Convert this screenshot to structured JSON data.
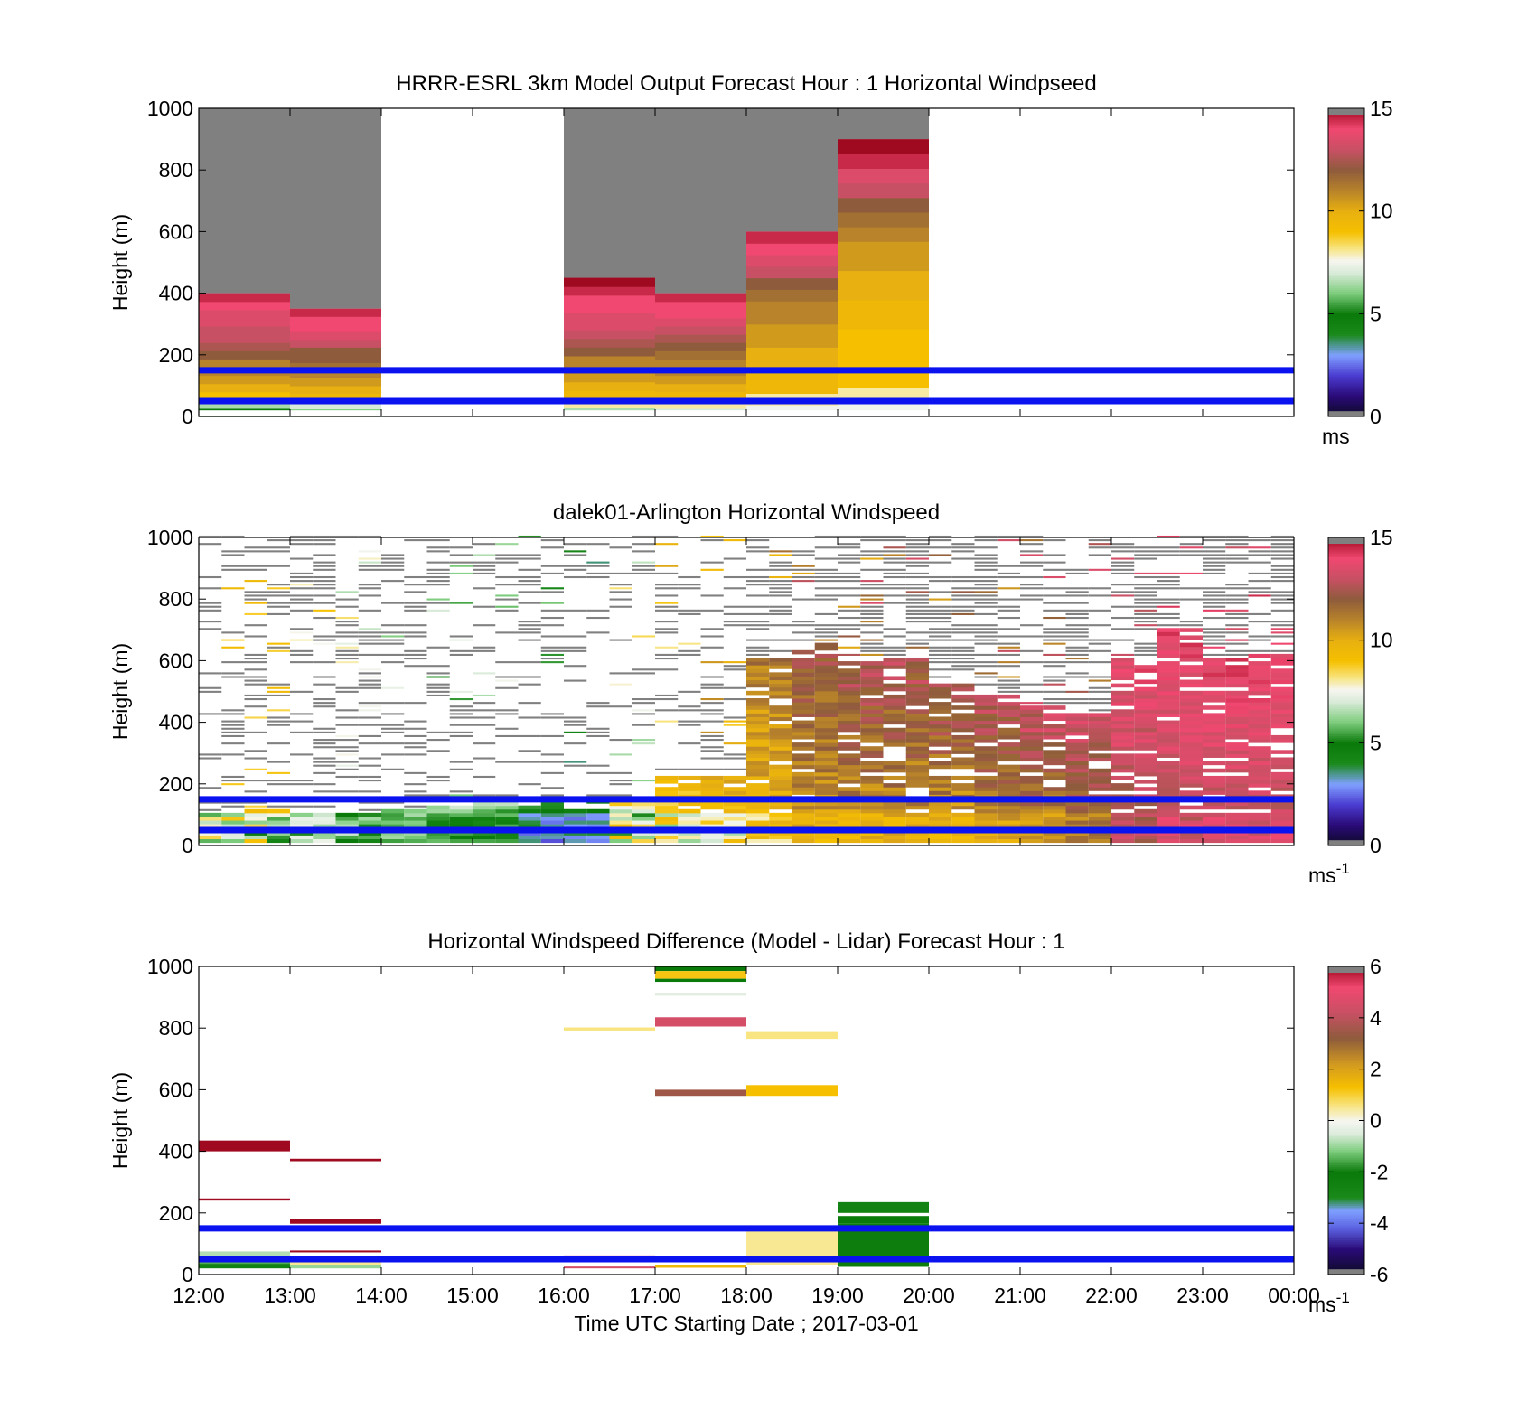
{
  "figure": {
    "xticks": [
      "12:00",
      "13:00",
      "14:00",
      "15:00",
      "16:00",
      "17:00",
      "18:00",
      "19:00",
      "20:00",
      "21:00",
      "22:00",
      "23:00",
      "00:00"
    ],
    "xlabel": "Time UTC  Starting Date ; 2017-03-01",
    "overlay_color": "#0a12f0",
    "missing_color": "#808080"
  },
  "chart_data": [
    {
      "type": "heatmap",
      "title": "HRRR-ESRL 3km Model Output   Forecast Hour : 1 Horizontal Windpseed",
      "ylabel": "Height (m)",
      "ylim": [
        0,
        1000
      ],
      "yticks": [
        "0",
        "200",
        "400",
        "600",
        "800",
        "1000"
      ],
      "x_range_hours": [
        12,
        24
      ],
      "colorbar": {
        "min": 0,
        "max": 15,
        "ticks": [
          "0",
          "5",
          "10",
          "15"
        ],
        "unit": "ms",
        "unit_sup": ""
      },
      "overlay_lines_m": [
        50,
        150
      ],
      "columns": [
        {
          "hour": 12,
          "top": 400,
          "v": [
            5,
            6.5,
            9,
            10,
            10.5,
            11,
            11,
            12,
            12.5,
            13,
            13,
            13.5,
            13.5,
            14,
            14.5
          ]
        },
        {
          "hour": 13,
          "top": 350,
          "v": [
            6,
            7,
            9.5,
            10,
            10.5,
            11,
            11.5,
            12,
            12,
            13,
            13.5,
            14,
            14,
            14.5
          ]
        },
        {
          "hour": 16,
          "top": 450,
          "v": [
            6.5,
            8,
            9.5,
            10,
            10.5,
            11,
            11,
            12,
            12.5,
            13,
            13.5,
            13.5,
            14,
            14,
            14.5,
            15
          ]
        },
        {
          "hour": 17,
          "top": 400,
          "v": [
            7,
            8,
            9.5,
            10,
            10.5,
            11,
            11,
            11.5,
            12,
            12.5,
            13,
            13.5,
            14,
            14,
            14.5
          ]
        },
        {
          "hour": 18,
          "top": 600,
          "v": [
            7.5,
            8,
            9.5,
            9.5,
            10,
            10,
            10.5,
            10.5,
            11,
            11,
            11.5,
            12,
            13,
            13.5,
            14,
            14.5
          ]
        },
        {
          "hour": 19,
          "top": 900,
          "v": [
            7.5,
            8,
            9,
            9,
            9,
            9,
            9.5,
            9.5,
            10,
            10,
            10.5,
            10.5,
            11,
            11.5,
            12,
            13,
            13.5,
            14.5,
            15
          ]
        }
      ]
    },
    {
      "type": "heatmap",
      "title": "dalek01-Arlington  Horizontal Windspeed",
      "ylabel": "Height (m)",
      "ylim": [
        0,
        1000
      ],
      "yticks": [
        "0",
        "200",
        "400",
        "600",
        "800",
        "1000"
      ],
      "x_range_hours": [
        12,
        24
      ],
      "colorbar": {
        "min": 0,
        "max": 15,
        "ticks": [
          "0",
          "5",
          "10",
          "15"
        ],
        "unit": "ms",
        "unit_sup": "-1"
      },
      "overlay_lines_m": [
        50,
        150
      ],
      "columns": [],
      "lidar_profile": [
        {
          "h": 12.0,
          "lo": 8.5,
          "hi": 9.5,
          "mlo": 5.5,
          "mhi": 9.0,
          "valid_top": 100,
          "cover": 0.3
        },
        {
          "h": 12.5,
          "lo": 8.5,
          "hi": 9.5,
          "mlo": 3.5,
          "mhi": 9.0,
          "valid_top": 110,
          "cover": 0.35
        },
        {
          "h": 13.0,
          "lo": 7.0,
          "hi": 9.0,
          "mlo": 4.0,
          "mhi": 7.5,
          "valid_top": 100,
          "cover": 0.4
        },
        {
          "h": 13.5,
          "lo": 6.5,
          "hi": 8.5,
          "mlo": 4.0,
          "mhi": 7.0,
          "valid_top": 90,
          "cover": 0.4
        },
        {
          "h": 14.0,
          "lo": 5.0,
          "hi": 7.5,
          "mlo": 5.0,
          "mhi": 6.5,
          "valid_top": 110,
          "cover": 0.35
        },
        {
          "h": 14.5,
          "lo": 5.0,
          "hi": 7.5,
          "mlo": 4.5,
          "mhi": 6.0,
          "valid_top": 120,
          "cover": 0.35
        },
        {
          "h": 15.0,
          "lo": 5.0,
          "hi": 7.5,
          "mlo": 4.0,
          "mhi": 6.0,
          "valid_top": 130,
          "cover": 0.3
        },
        {
          "h": 15.5,
          "lo": 4.0,
          "hi": 6.0,
          "mlo": 2.0,
          "mhi": 4.0,
          "valid_top": 130,
          "cover": 0.25
        },
        {
          "h": 16.0,
          "lo": 3.5,
          "hi": 5.5,
          "mlo": 2.5,
          "mhi": 4.0,
          "valid_top": 110,
          "cover": 0.25
        },
        {
          "h": 16.5,
          "lo": 6.0,
          "hi": 9.0,
          "mlo": 5.0,
          "mhi": 9.5,
          "valid_top": 130,
          "cover": 0.3
        },
        {
          "h": 17.0,
          "lo": 8.0,
          "hi": 10.5,
          "mlo": 6.0,
          "mhi": 9.5,
          "valid_top": 220,
          "cover": 0.35
        },
        {
          "h": 17.5,
          "lo": 8.5,
          "hi": 11.0,
          "mlo": 6.5,
          "mhi": 9.5,
          "valid_top": 220,
          "cover": 0.4
        },
        {
          "h": 18.0,
          "lo": 9.0,
          "hi": 12.0,
          "mlo": 7.5,
          "mhi": 10.0,
          "valid_top": 600,
          "cover": 0.55
        },
        {
          "h": 18.5,
          "lo": 10.0,
          "hi": 13.0,
          "mlo": 9.0,
          "mhi": 10.5,
          "valid_top": 650,
          "cover": 0.6
        },
        {
          "h": 19.0,
          "lo": 10.0,
          "hi": 13.5,
          "mlo": 9.0,
          "mhi": 10.5,
          "valid_top": 600,
          "cover": 0.6
        },
        {
          "h": 19.5,
          "lo": 10.0,
          "hi": 13.5,
          "mlo": 9.0,
          "mhi": 10.5,
          "valid_top": 600,
          "cover": 0.55
        },
        {
          "h": 20.0,
          "lo": 10.0,
          "hi": 13.5,
          "mlo": 9.0,
          "mhi": 10.5,
          "valid_top": 520,
          "cover": 0.55
        },
        {
          "h": 20.5,
          "lo": 10.5,
          "hi": 13.5,
          "mlo": 9.5,
          "mhi": 11.0,
          "valid_top": 480,
          "cover": 0.55
        },
        {
          "h": 21.0,
          "lo": 10.5,
          "hi": 14.0,
          "mlo": 10.0,
          "mhi": 11.5,
          "valid_top": 450,
          "cover": 0.5
        },
        {
          "h": 21.5,
          "lo": 11.0,
          "hi": 14.0,
          "mlo": 10.5,
          "mhi": 12.0,
          "valid_top": 420,
          "cover": 0.5
        },
        {
          "h": 22.0,
          "lo": 12.0,
          "hi": 14.5,
          "mlo": 12.0,
          "mhi": 13.5,
          "valid_top": 600,
          "cover": 0.6
        },
        {
          "h": 22.5,
          "lo": 12.5,
          "hi": 14.5,
          "mlo": 12.5,
          "mhi": 14.0,
          "valid_top": 700,
          "cover": 0.65
        },
        {
          "h": 23.0,
          "lo": 12.5,
          "hi": 14.5,
          "mlo": 13.0,
          "mhi": 14.0,
          "valid_top": 600,
          "cover": 0.65
        },
        {
          "h": 23.5,
          "lo": 12.5,
          "hi": 14.5,
          "mlo": 12.5,
          "mhi": 14.0,
          "valid_top": 620,
          "cover": 0.65
        }
      ]
    },
    {
      "type": "heatmap",
      "title": "Horizontal Windspeed Difference (Model - Lidar) Forecast Hour : 1",
      "ylabel": "Height (m)",
      "ylim": [
        0,
        1000
      ],
      "yticks": [
        "0",
        "200",
        "400",
        "600",
        "800",
        "1000"
      ],
      "x_range_hours": [
        12,
        24
      ],
      "colorbar": {
        "min": -6,
        "max": 6,
        "ticks": [
          "-6",
          "-4",
          "-2",
          "0",
          "2",
          "4",
          "6"
        ],
        "unit": "ms",
        "unit_sup": "-1"
      },
      "overlay_lines_m": [
        50,
        150
      ],
      "segments": [
        {
          "h0": 12,
          "h1": 13,
          "y0": 400,
          "y1": 435,
          "v": 6.5
        },
        {
          "h0": 12,
          "h1": 13,
          "y0": 240,
          "y1": 247,
          "v": 6.5
        },
        {
          "h0": 12,
          "h1": 13,
          "y0": 20,
          "y1": 35,
          "v": -2.5
        },
        {
          "h0": 12,
          "h1": 13,
          "y0": 35,
          "y1": 50,
          "v": -1.5
        },
        {
          "h0": 12,
          "h1": 13,
          "y0": 50,
          "y1": 75,
          "v": -0.8
        },
        {
          "h0": 13,
          "h1": 14,
          "y0": 368,
          "y1": 376,
          "v": 6.5
        },
        {
          "h0": 13,
          "h1": 14,
          "y0": 165,
          "y1": 180,
          "v": 6.5
        },
        {
          "h0": 13,
          "h1": 14,
          "y0": 72,
          "y1": 78,
          "v": 6.5
        },
        {
          "h0": 13,
          "h1": 14,
          "y0": 20,
          "y1": 30,
          "v": -1.0
        },
        {
          "h0": 13,
          "h1": 14,
          "y0": 30,
          "y1": 40,
          "v": 0.5
        },
        {
          "h0": 16,
          "h1": 17,
          "y0": 792,
          "y1": 802,
          "v": 0.6
        },
        {
          "h0": 16,
          "h1": 17,
          "y0": 55,
          "y1": 62,
          "v": 4.5
        },
        {
          "h0": 16,
          "h1": 17,
          "y0": 20,
          "y1": 26,
          "v": 4.5
        },
        {
          "h0": 17,
          "h1": 18,
          "y0": 985,
          "y1": 1000,
          "v": -2.0
        },
        {
          "h0": 17,
          "h1": 18,
          "y0": 960,
          "y1": 985,
          "v": 1.2
        },
        {
          "h0": 17,
          "h1": 18,
          "y0": 950,
          "y1": 960,
          "v": -2.0
        },
        {
          "h0": 17,
          "h1": 18,
          "y0": 905,
          "y1": 915,
          "v": -0.4
        },
        {
          "h0": 17,
          "h1": 18,
          "y0": 805,
          "y1": 835,
          "v": 4.5
        },
        {
          "h0": 17,
          "h1": 18,
          "y0": 580,
          "y1": 600,
          "v": 3.5
        },
        {
          "h0": 17,
          "h1": 18,
          "y0": 22,
          "y1": 30,
          "v": 1.5
        },
        {
          "h0": 18,
          "h1": 19,
          "y0": 765,
          "y1": 790,
          "v": 0.6
        },
        {
          "h0": 18,
          "h1": 19,
          "y0": 580,
          "y1": 615,
          "v": 1.3
        },
        {
          "h0": 18,
          "h1": 19,
          "y0": 30,
          "y1": 145,
          "v": 0.5
        },
        {
          "h0": 19,
          "h1": 20,
          "y0": 200,
          "y1": 235,
          "v": -2.5
        },
        {
          "h0": 19,
          "h1": 20,
          "y0": 165,
          "y1": 190,
          "v": -2.0
        },
        {
          "h0": 19,
          "h1": 20,
          "y0": 25,
          "y1": 165,
          "v": -2.2
        }
      ]
    }
  ]
}
